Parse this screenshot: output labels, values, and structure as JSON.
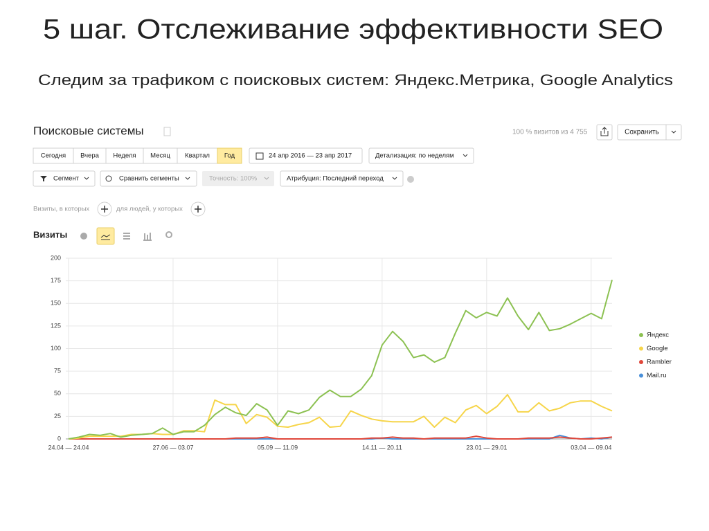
{
  "header": {
    "title": "5 шаг. Отслеживание эффективности SEO",
    "subtitle": "Следим за трафиком с поисковых систем: Яндекс.Метрика, Google Analytics"
  },
  "panel": {
    "heading": "Поисковые системы",
    "visits_share": "100 % визитов из 4 755",
    "save_button": "Сохранить",
    "periods": [
      "Сегодня",
      "Вчера",
      "Неделя",
      "Месяц",
      "Квартал",
      "Год"
    ],
    "date_range": "24 апр 2016 — 23 апр 2017",
    "detail": "Детализация: по неделям",
    "segment": "Сегмент",
    "compare": "Сравнить сегменты",
    "accuracy": "Точность: 100%",
    "attribution": "Атрибуция: Последний переход",
    "filter_visits": "Визиты, в которых",
    "filter_people": "для людей, у которых",
    "metric": "Визиты"
  },
  "chart_data": {
    "type": "line",
    "categories": [
      "24.04 — 24.04",
      null,
      null,
      null,
      null,
      null,
      null,
      null,
      null,
      null,
      "27.06 — 03.07",
      null,
      null,
      null,
      null,
      null,
      null,
      null,
      null,
      null,
      "05.09 — 11.09",
      null,
      null,
      null,
      null,
      null,
      null,
      null,
      null,
      null,
      "14.11 — 20.11",
      null,
      null,
      null,
      null,
      null,
      null,
      null,
      null,
      null,
      "23.01 — 29.01",
      null,
      null,
      null,
      null,
      null,
      null,
      null,
      null,
      null,
      "03.04 — 09.04",
      null,
      null
    ],
    "series": [
      {
        "name": "Яндекс",
        "color": "#8cc152",
        "values": [
          0,
          2,
          5,
          4,
          6,
          2,
          4,
          5,
          6,
          12,
          5,
          8,
          8,
          15,
          27,
          35,
          29,
          26,
          39,
          32,
          15,
          31,
          28,
          32,
          46,
          54,
          47,
          47,
          55,
          70,
          104,
          119,
          108,
          90,
          93,
          85,
          90,
          117,
          142,
          134,
          140,
          136,
          156,
          136,
          121,
          140,
          120,
          122,
          127,
          133,
          139,
          133,
          176
        ]
      },
      {
        "name": "Google",
        "color": "#f6d54a",
        "values": [
          0,
          1,
          3,
          3,
          3,
          3,
          5,
          5,
          6,
          5,
          5,
          9,
          9,
          8,
          43,
          38,
          38,
          17,
          27,
          24,
          14,
          13,
          16,
          18,
          24,
          13,
          14,
          31,
          26,
          22,
          20,
          19,
          19,
          19,
          25,
          13,
          24,
          18,
          32,
          37,
          28,
          36,
          49,
          30,
          30,
          40,
          31,
          34,
          40,
          42,
          42,
          36,
          31
        ]
      },
      {
        "name": "Rambler",
        "color": "#e0473a",
        "values": [
          0,
          0,
          0,
          0,
          0,
          0,
          0,
          0,
          0,
          0,
          0,
          0,
          0,
          0,
          0,
          0,
          1,
          1,
          1,
          2,
          0,
          0,
          0,
          0,
          0,
          0,
          0,
          0,
          0,
          1,
          1,
          2,
          1,
          1,
          0,
          1,
          1,
          1,
          1,
          3,
          1,
          0,
          0,
          0,
          1,
          1,
          1,
          2,
          1,
          0,
          0,
          1,
          2
        ]
      },
      {
        "name": "Mail.ru",
        "color": "#4a90d9",
        "values": [
          0,
          0,
          0,
          0,
          0,
          0,
          0,
          0,
          0,
          0,
          0,
          0,
          0,
          0,
          0,
          0,
          0,
          0,
          0,
          0,
          0,
          0,
          0,
          0,
          0,
          0,
          0,
          0,
          0,
          0,
          1,
          0,
          0,
          0,
          0,
          0,
          0,
          0,
          0,
          0,
          0,
          0,
          0,
          0,
          0,
          0,
          0,
          4,
          1,
          0,
          1,
          0,
          2
        ]
      }
    ],
    "ylim": [
      0,
      200
    ],
    "yticks": [
      0,
      25,
      50,
      75,
      100,
      125,
      150,
      175,
      200
    ],
    "grid": true,
    "legend": "right"
  }
}
